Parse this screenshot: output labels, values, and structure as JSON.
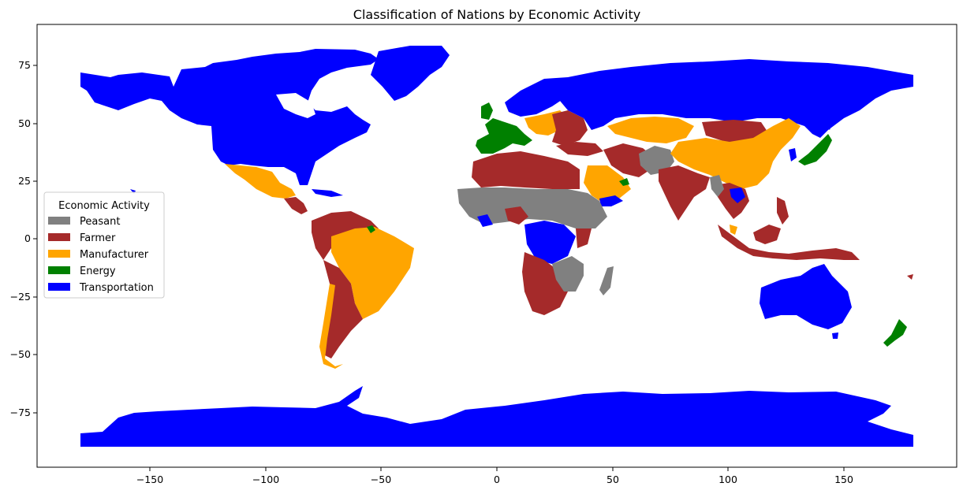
{
  "title": "Classification of Nations by Economic Activity",
  "x_ticks": [
    "−150",
    "−100",
    "−50",
    "0",
    "50",
    "100",
    "150"
  ],
  "y_ticks": [
    "75",
    "50",
    "25",
    "0",
    "−25",
    "−50",
    "−75"
  ],
  "legend": {
    "title": "Economic Activity",
    "placement": "center-left",
    "items": [
      {
        "label": "Peasant",
        "color": "#808080"
      },
      {
        "label": "Farmer",
        "color": "#a52a2a"
      },
      {
        "label": "Manufacturer",
        "color": "#ffa500"
      },
      {
        "label": "Energy",
        "color": "#008000"
      },
      {
        "label": "Transportation",
        "color": "#0000ff"
      }
    ]
  },
  "colors": {
    "peasant": "#808080",
    "farmer": "#a52a2a",
    "manufacturer": "#ffa500",
    "energy": "#008000",
    "transportation": "#0000ff"
  }
}
